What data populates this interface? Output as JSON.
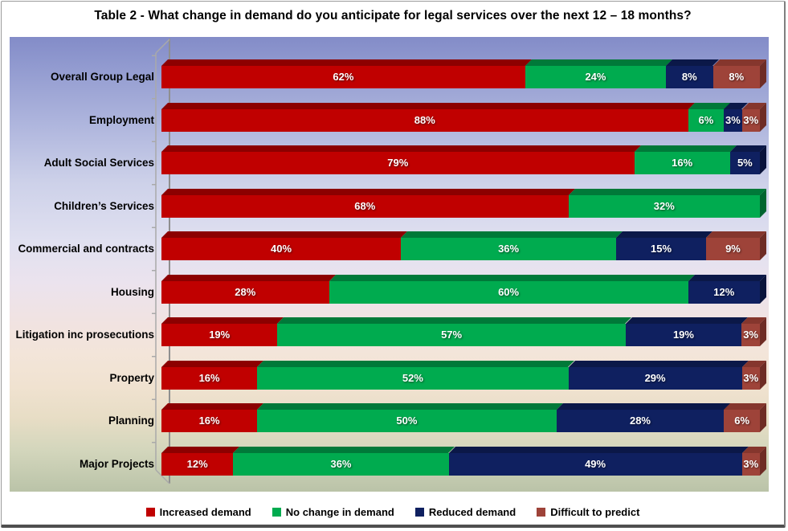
{
  "title": "Table 2 - What change in demand do you anticipate for legal services over the next 12 – 18 months?",
  "chart_data": {
    "type": "bar",
    "subtype": "100%-stacked-horizontal-3d",
    "title": "Table 2 - What change in demand do you anticipate for legal services over the next 12 – 18 months?",
    "xlabel": "",
    "ylabel": "",
    "value_axis": "hidden",
    "grid": false,
    "legend_position": "bottom",
    "data_label_format": "{value}%",
    "categories": [
      "Overall Group Legal",
      "Employment",
      "Adult Social Services",
      "Children’s Services",
      "Commercial and contracts",
      "Housing",
      "Litigation inc prosecutions",
      "Property",
      "Planning",
      "Major Projects"
    ],
    "series": [
      {
        "name": "Increased demand",
        "color": "#C00000",
        "color_top": "#8C0000",
        "color_side": "#740000",
        "values": [
          62,
          88,
          79,
          68,
          40,
          28,
          19,
          16,
          16,
          12
        ]
      },
      {
        "name": "No change in demand",
        "color": "#00AB4F",
        "color_top": "#007939",
        "color_side": "#00652F",
        "values": [
          24,
          6,
          16,
          32,
          36,
          60,
          57,
          52,
          50,
          36
        ]
      },
      {
        "name": "Reduced demand",
        "color": "#0F2060",
        "color_top": "#0B1848",
        "color_side": "#09133B",
        "values": [
          8,
          3,
          5,
          0,
          15,
          12,
          19,
          29,
          28,
          49
        ]
      },
      {
        "name": "Difficult to predict",
        "color": "#9E4339",
        "color_top": "#85362D",
        "color_side": "#6E2C25",
        "values": [
          8,
          3,
          0,
          0,
          9,
          0,
          3,
          3,
          6,
          3
        ]
      }
    ]
  }
}
